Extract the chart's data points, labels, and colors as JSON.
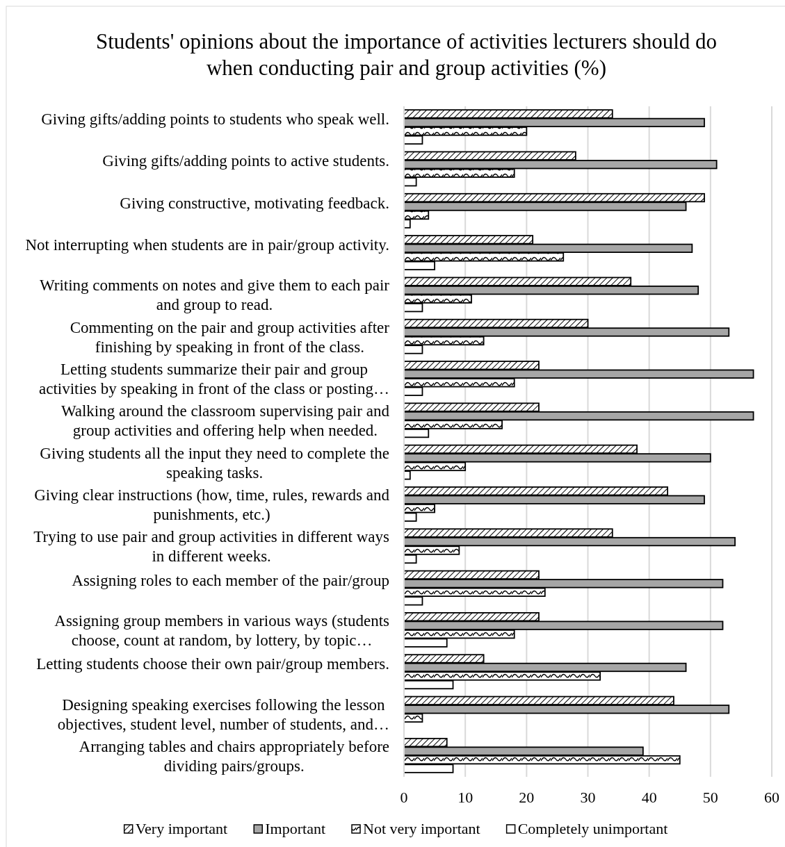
{
  "chart_data": {
    "type": "bar",
    "orientation": "horizontal",
    "title": "Students' opinions about the importance of activities lecturers should do when conducting pair and group activities (%)",
    "categories": [
      "Giving gifts/adding points to students who speak well.",
      "Giving gifts/adding points to active students.",
      "Giving constructive, motivating feedback.",
      "Not interrupting when students are in pair/group activity.",
      "Writing comments on notes and give them to each pair and group to read.",
      "Commenting on the pair and group activities after finishing by speaking in front of the class.",
      "Letting students summarize their pair and group activities by speaking in front of the class or posting…",
      "Walking around the classroom supervising pair and group activities and offering help when needed.",
      "Giving students all the input they need to complete the speaking tasks.",
      "Giving clear instructions (how, time, rules, rewards and punishments, etc.)",
      "Trying to use pair and group activities in different ways in different weeks.",
      "Assigning roles to each member of the pair/group",
      "Assigning group members in various ways (students choose, count at random, by lottery, by topic…",
      "Letting students choose their own pair/group members.",
      "Designing speaking exercises following the lesson objectives, student level, number of students, and…",
      "Arranging tables and chairs appropriately before dividing pairs/groups."
    ],
    "series": [
      {
        "name": "Very important",
        "color": "#000000",
        "values": [
          34,
          28,
          49,
          21,
          37,
          30,
          22,
          22,
          38,
          43,
          34,
          22,
          22,
          13,
          44,
          7
        ]
      },
      {
        "name": "Important",
        "color": "#a6a6a6",
        "values": [
          49,
          51,
          46,
          47,
          48,
          53,
          57,
          57,
          50,
          49,
          54,
          52,
          52,
          46,
          53,
          39
        ]
      },
      {
        "name": "Not very important",
        "color": "#000000",
        "values": [
          20,
          18,
          4,
          26,
          11,
          13,
          18,
          16,
          10,
          5,
          9,
          23,
          18,
          32,
          3,
          45
        ]
      },
      {
        "name": "Completely unimportant",
        "color": "#ffffff",
        "values": [
          3,
          2,
          1,
          5,
          3,
          3,
          3,
          4,
          1,
          2,
          2,
          3,
          7,
          8,
          0,
          8
        ]
      }
    ],
    "xlim": [
      0,
      60
    ],
    "xticks": [
      0,
      10,
      20,
      30,
      40,
      50,
      60
    ],
    "grid": "x",
    "legend": "bottom"
  }
}
